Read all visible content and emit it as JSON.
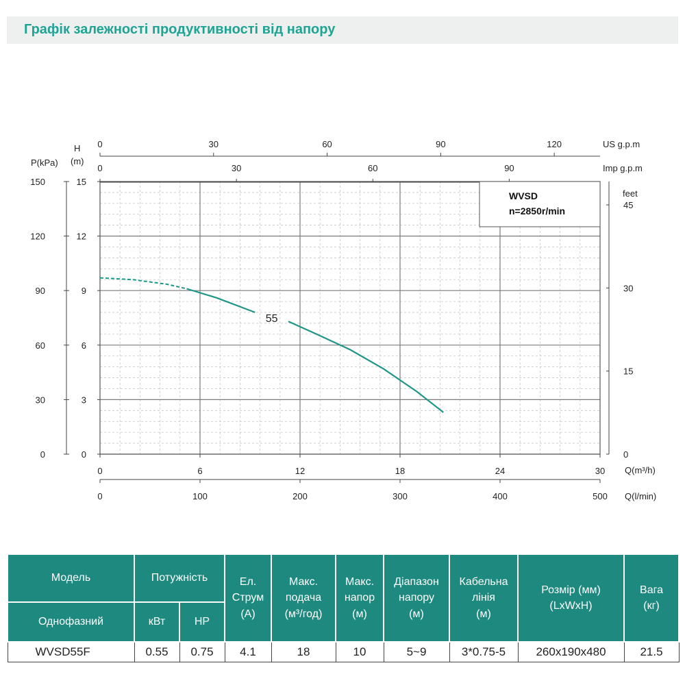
{
  "page": {
    "title": "Графік залежності продуктивності від напору"
  },
  "colors": {
    "title": "#1fa393",
    "curve": "#1e9688",
    "header": "#1e8a7f",
    "grid_major": "#7a7a7a",
    "grid_minor": "#c4c4c4"
  },
  "chart_data": {
    "type": "line",
    "model_box": {
      "line1": "WVSD",
      "line2": "n=2850r/min"
    },
    "axes": {
      "x_main": {
        "label": "Q(m³/h)",
        "ticks": [
          0,
          6,
          12,
          18,
          24,
          30
        ],
        "range": [
          0,
          30
        ]
      },
      "x_lmin": {
        "label": "Q(l/min)",
        "ticks": [
          0,
          100,
          200,
          300,
          400,
          500
        ],
        "range": [
          0,
          500
        ]
      },
      "x_usgpm": {
        "label": "US g.p.m",
        "ticks": [
          0,
          30,
          60,
          90,
          120
        ]
      },
      "x_impgpm": {
        "label": "Imp g.p.m",
        "ticks": [
          0,
          30,
          60,
          90
        ]
      },
      "y_head": {
        "label_line1": "H",
        "label_line2": "(m)",
        "ticks": [
          0,
          3,
          6,
          9,
          12,
          15
        ],
        "range": [
          0,
          15
        ]
      },
      "y_pressure": {
        "label": "P(kPa)",
        "ticks": [
          0,
          30,
          60,
          90,
          120,
          150
        ]
      },
      "y_feet": {
        "label": "feet",
        "ticks": [
          0,
          15,
          30,
          45
        ]
      }
    },
    "series": [
      {
        "name": "55",
        "dashed_segment": [
          [
            0,
            9.7
          ],
          [
            2,
            9.6
          ],
          [
            4,
            9.35
          ],
          [
            5.2,
            9.1
          ]
        ],
        "solid_segment": [
          [
            5.2,
            9.1
          ],
          [
            7,
            8.6
          ],
          [
            9.3,
            7.8
          ]
        ],
        "solid_segment_2": [
          [
            11.3,
            7.3
          ],
          [
            13,
            6.6
          ],
          [
            15,
            5.75
          ],
          [
            17,
            4.7
          ],
          [
            19,
            3.45
          ],
          [
            20.6,
            2.3
          ]
        ],
        "label_at": [
          10.3,
          7.5
        ]
      }
    ],
    "grid": true
  },
  "table": {
    "headers_row1": {
      "model": "Модель",
      "power": "Потужність",
      "current": "Ел.\nСтрум\n(A)",
      "max_flow": "Макс.\nподача\n(м³/год)",
      "max_head": "Макс.\nнапор\n(м)",
      "head_range": "Діапазон\nнапору\n(м)",
      "cable": "Кабельна\nлінія\n(м)",
      "size": "Розмір (мм)\n(LxWxH)",
      "weight": "Вага\n(кг)"
    },
    "headers_row2": {
      "phase": "Однофазний",
      "kw": "кВт",
      "hp": "HP"
    },
    "rows": [
      [
        "WVSD55F",
        "0.55",
        "0.75",
        "4.1",
        "18",
        "10",
        "5~9",
        "3*0.75-5",
        "260x190x480",
        "21.5"
      ]
    ]
  }
}
